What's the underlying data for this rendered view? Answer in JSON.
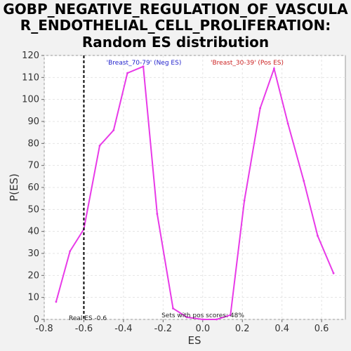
{
  "chart_data": {
    "type": "line",
    "title_lines": [
      "GOBP_NEGATIVE_REGULATION_OF_VASCULA",
      "R_ENDOTHELIAL_CELL_PROLIFERATION:",
      "Random ES distribution"
    ],
    "xlabel": "ES",
    "ylabel": "P(ES)",
    "xlim": [
      -0.8,
      0.72
    ],
    "ylim": [
      0,
      120
    ],
    "x_ticks": [
      -0.8,
      -0.6,
      -0.4,
      -0.2,
      0.0,
      0.2,
      0.4,
      0.6
    ],
    "x_tick_labels": [
      "-0.8",
      "-0.6",
      "-0.4",
      "-0.2",
      "0.0",
      "0.2",
      "0.4",
      "0.6"
    ],
    "y_ticks": [
      0,
      10,
      20,
      30,
      40,
      50,
      60,
      70,
      80,
      90,
      100,
      110,
      120
    ],
    "y_tick_labels": [
      "0",
      "10",
      "20",
      "30",
      "40",
      "50",
      "60",
      "70",
      "80",
      "90",
      "100",
      "110",
      "120"
    ],
    "grid": true,
    "series": [
      {
        "color": "#e83ae8",
        "x": [
          -0.74,
          -0.67,
          -0.6,
          -0.52,
          -0.45,
          -0.38,
          -0.3,
          -0.23,
          -0.15,
          -0.08,
          0.0,
          0.07,
          0.14,
          0.21,
          0.29,
          0.36,
          0.43,
          0.51,
          0.58,
          0.66
        ],
        "y": [
          8,
          31,
          41,
          79,
          86,
          112,
          115,
          48,
          5,
          1,
          0,
          0,
          2,
          54,
          96,
          114,
          89,
          63,
          38,
          21
        ]
      }
    ],
    "vline": {
      "x": -0.6,
      "label": "Real ES -0.6"
    },
    "annotations": {
      "neg": {
        "text": "'Breast_70-79' (Neg ES)",
        "color": "#2222cc"
      },
      "pos": {
        "text": "'Breast_30-39' (Pos ES)",
        "color": "#cc2222"
      },
      "bottom": "Sets with pos scores: 48%"
    }
  }
}
